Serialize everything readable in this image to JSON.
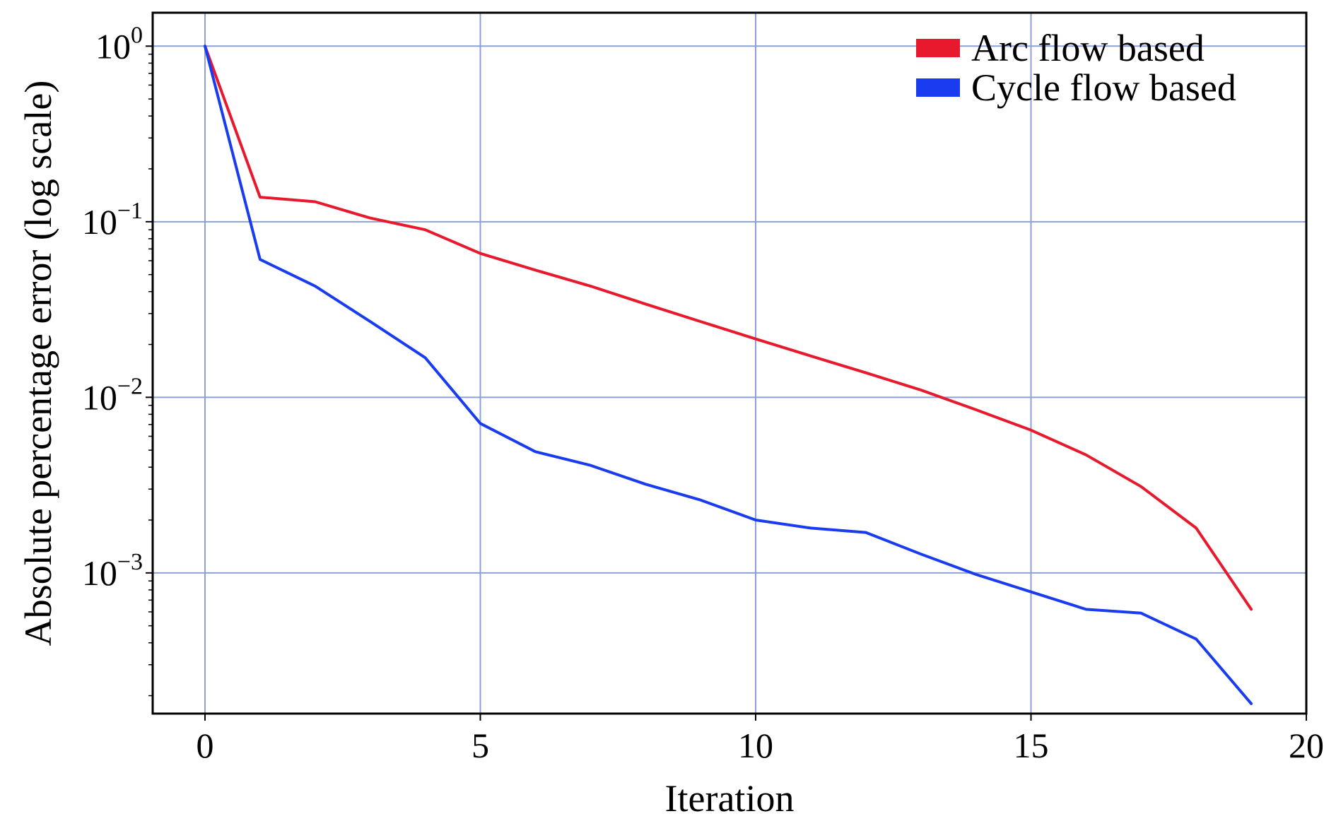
{
  "chart_data": {
    "type": "line",
    "title": "",
    "xlabel": "Iteration",
    "ylabel": "Absolute percentage error (log scale)",
    "yscale": "log",
    "xlim": [
      -0.95,
      20
    ],
    "ylim": [
      0.000158,
      1.55
    ],
    "xticks": [
      0,
      5,
      10,
      15,
      20
    ],
    "xtick_labels": [
      "0",
      "5",
      "10",
      "15",
      "20"
    ],
    "yticks": [
      1,
      0.1,
      0.01,
      0.001
    ],
    "ytick_labels": [
      {
        "base": "10",
        "exp": "0"
      },
      {
        "base": "10",
        "exp": "−1"
      },
      {
        "base": "10",
        "exp": "−2"
      },
      {
        "base": "10",
        "exp": "−3"
      }
    ],
    "grid": true,
    "grid_color": "#8ea0d8",
    "legend_position": "top-right",
    "x": [
      0,
      1,
      2,
      3,
      4,
      5,
      6,
      7,
      8,
      9,
      10,
      11,
      12,
      13,
      14,
      15,
      16,
      17,
      18,
      19
    ],
    "series": [
      {
        "name": "Arc flow based",
        "color": "#e8192c",
        "values": [
          1.0,
          0.138,
          0.13,
          0.105,
          0.09,
          0.066,
          0.053,
          0.043,
          0.034,
          0.027,
          0.0215,
          0.0172,
          0.0138,
          0.011,
          0.0085,
          0.0065,
          0.0047,
          0.0031,
          0.0018,
          0.00062
        ]
      },
      {
        "name": "Cycle flow based",
        "color": "#1a3cf0",
        "values": [
          1.0,
          0.061,
          0.043,
          0.027,
          0.0168,
          0.0071,
          0.0049,
          0.0041,
          0.0032,
          0.0026,
          0.002,
          0.0018,
          0.0017,
          0.00128,
          0.00098,
          0.00078,
          0.00062,
          0.00059,
          0.00042,
          0.00018
        ]
      }
    ]
  }
}
